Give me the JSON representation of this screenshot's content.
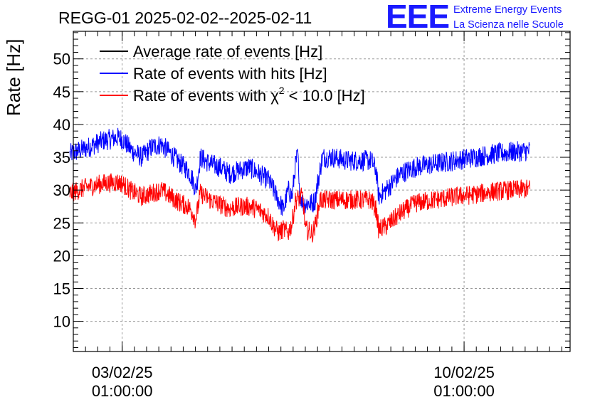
{
  "chart_data": {
    "type": "line",
    "title": "REGG-01 2025-02-02--2025-02-11",
    "ylabel": "Rate [Hz]",
    "xlabel": "",
    "ylim": [
      5.4,
      54.2
    ],
    "xlim": [
      0,
      10.17
    ],
    "x_unit": "days since 2025-02-02 01:00:00",
    "grid": true,
    "legend_position": "top-left",
    "yticks": [
      10,
      15,
      20,
      25,
      30,
      35,
      40,
      45,
      50
    ],
    "xticks": [
      {
        "value": 1,
        "line1": "03/02/25",
        "line2": "01:00:00"
      },
      {
        "value": 8,
        "line1": "10/02/25",
        "line2": "01:00:00"
      }
    ],
    "series": [
      {
        "name": "Average rate of events [Hz]",
        "color": "#000000",
        "points": []
      },
      {
        "name": "Rate of events with hits [Hz]",
        "color": "#0000ff",
        "noise": 1.6,
        "points": [
          [
            -0.07,
            35.5
          ],
          [
            0.3,
            36.5
          ],
          [
            0.6,
            37.5
          ],
          [
            0.9,
            38
          ],
          [
            1.0,
            37.8
          ],
          [
            1.2,
            36
          ],
          [
            1.4,
            35
          ],
          [
            1.6,
            36.5
          ],
          [
            1.8,
            37
          ],
          [
            2.0,
            35.5
          ],
          [
            2.2,
            34
          ],
          [
            2.35,
            33
          ],
          [
            2.45,
            31.5
          ],
          [
            2.5,
            30
          ],
          [
            2.53,
            31
          ],
          [
            2.6,
            35
          ],
          [
            2.8,
            34
          ],
          [
            3.0,
            33.5
          ],
          [
            3.2,
            32.5
          ],
          [
            3.4,
            33
          ],
          [
            3.6,
            33.5
          ],
          [
            3.8,
            32.5
          ],
          [
            4.0,
            31.5
          ],
          [
            4.1,
            30
          ],
          [
            4.2,
            28.5
          ],
          [
            4.3,
            27
          ],
          [
            4.4,
            30
          ],
          [
            4.48,
            29
          ],
          [
            4.5,
            30.5
          ],
          [
            4.55,
            34
          ],
          [
            4.6,
            35.5
          ],
          [
            4.62,
            30
          ],
          [
            4.7,
            28
          ],
          [
            4.9,
            28
          ],
          [
            4.95,
            28.5
          ],
          [
            5.0,
            31
          ],
          [
            5.1,
            35
          ],
          [
            5.3,
            35
          ],
          [
            5.6,
            34.5
          ],
          [
            5.9,
            34.5
          ],
          [
            6.1,
            34.5
          ],
          [
            6.2,
            33
          ],
          [
            6.25,
            29
          ],
          [
            6.4,
            30
          ],
          [
            6.7,
            32.5
          ],
          [
            7.0,
            33.5
          ],
          [
            7.4,
            34
          ],
          [
            7.8,
            34.5
          ],
          [
            8.2,
            35
          ],
          [
            8.6,
            35.5
          ],
          [
            9.0,
            35.8
          ],
          [
            9.35,
            36
          ]
        ]
      },
      {
        "name": "Rate of events with χ² < 10.0 [Hz]",
        "color": "#ff0000",
        "noise": 1.5,
        "points": [
          [
            -0.07,
            29.5
          ],
          [
            0.3,
            30.5
          ],
          [
            0.6,
            31
          ],
          [
            0.9,
            31.2
          ],
          [
            1.0,
            31
          ],
          [
            1.2,
            29.8
          ],
          [
            1.4,
            29
          ],
          [
            1.6,
            29.5
          ],
          [
            1.8,
            30
          ],
          [
            2.0,
            29
          ],
          [
            2.2,
            28
          ],
          [
            2.35,
            27.5
          ],
          [
            2.45,
            26.5
          ],
          [
            2.5,
            25.5
          ],
          [
            2.53,
            26.5
          ],
          [
            2.6,
            29.5
          ],
          [
            2.8,
            28.5
          ],
          [
            3.0,
            27.8
          ],
          [
            3.2,
            27.2
          ],
          [
            3.4,
            27.5
          ],
          [
            3.6,
            27.5
          ],
          [
            3.8,
            27
          ],
          [
            4.0,
            26
          ],
          [
            4.1,
            24.5
          ],
          [
            4.2,
            23.5
          ],
          [
            4.3,
            24
          ],
          [
            4.4,
            23.5
          ],
          [
            4.48,
            25
          ],
          [
            4.55,
            28.5
          ],
          [
            4.7,
            29
          ],
          [
            4.75,
            24
          ],
          [
            4.9,
            23.5
          ],
          [
            4.95,
            24.5
          ],
          [
            5.0,
            26.5
          ],
          [
            5.05,
            28.5
          ],
          [
            5.3,
            28.5
          ],
          [
            5.6,
            28.5
          ],
          [
            5.9,
            28.5
          ],
          [
            6.1,
            28.5
          ],
          [
            6.2,
            27
          ],
          [
            6.25,
            24
          ],
          [
            6.4,
            24.5
          ],
          [
            6.7,
            26.5
          ],
          [
            7.0,
            28
          ],
          [
            7.4,
            28.5
          ],
          [
            7.8,
            29
          ],
          [
            8.2,
            29.3
          ],
          [
            8.6,
            29.8
          ],
          [
            9.0,
            30
          ],
          [
            9.35,
            30.2
          ]
        ]
      }
    ]
  },
  "logo": {
    "mark": "EEE",
    "line1": "Extreme Energy Events",
    "line2": "La Scienza nelle Scuole",
    "color": "#1a1aff"
  }
}
